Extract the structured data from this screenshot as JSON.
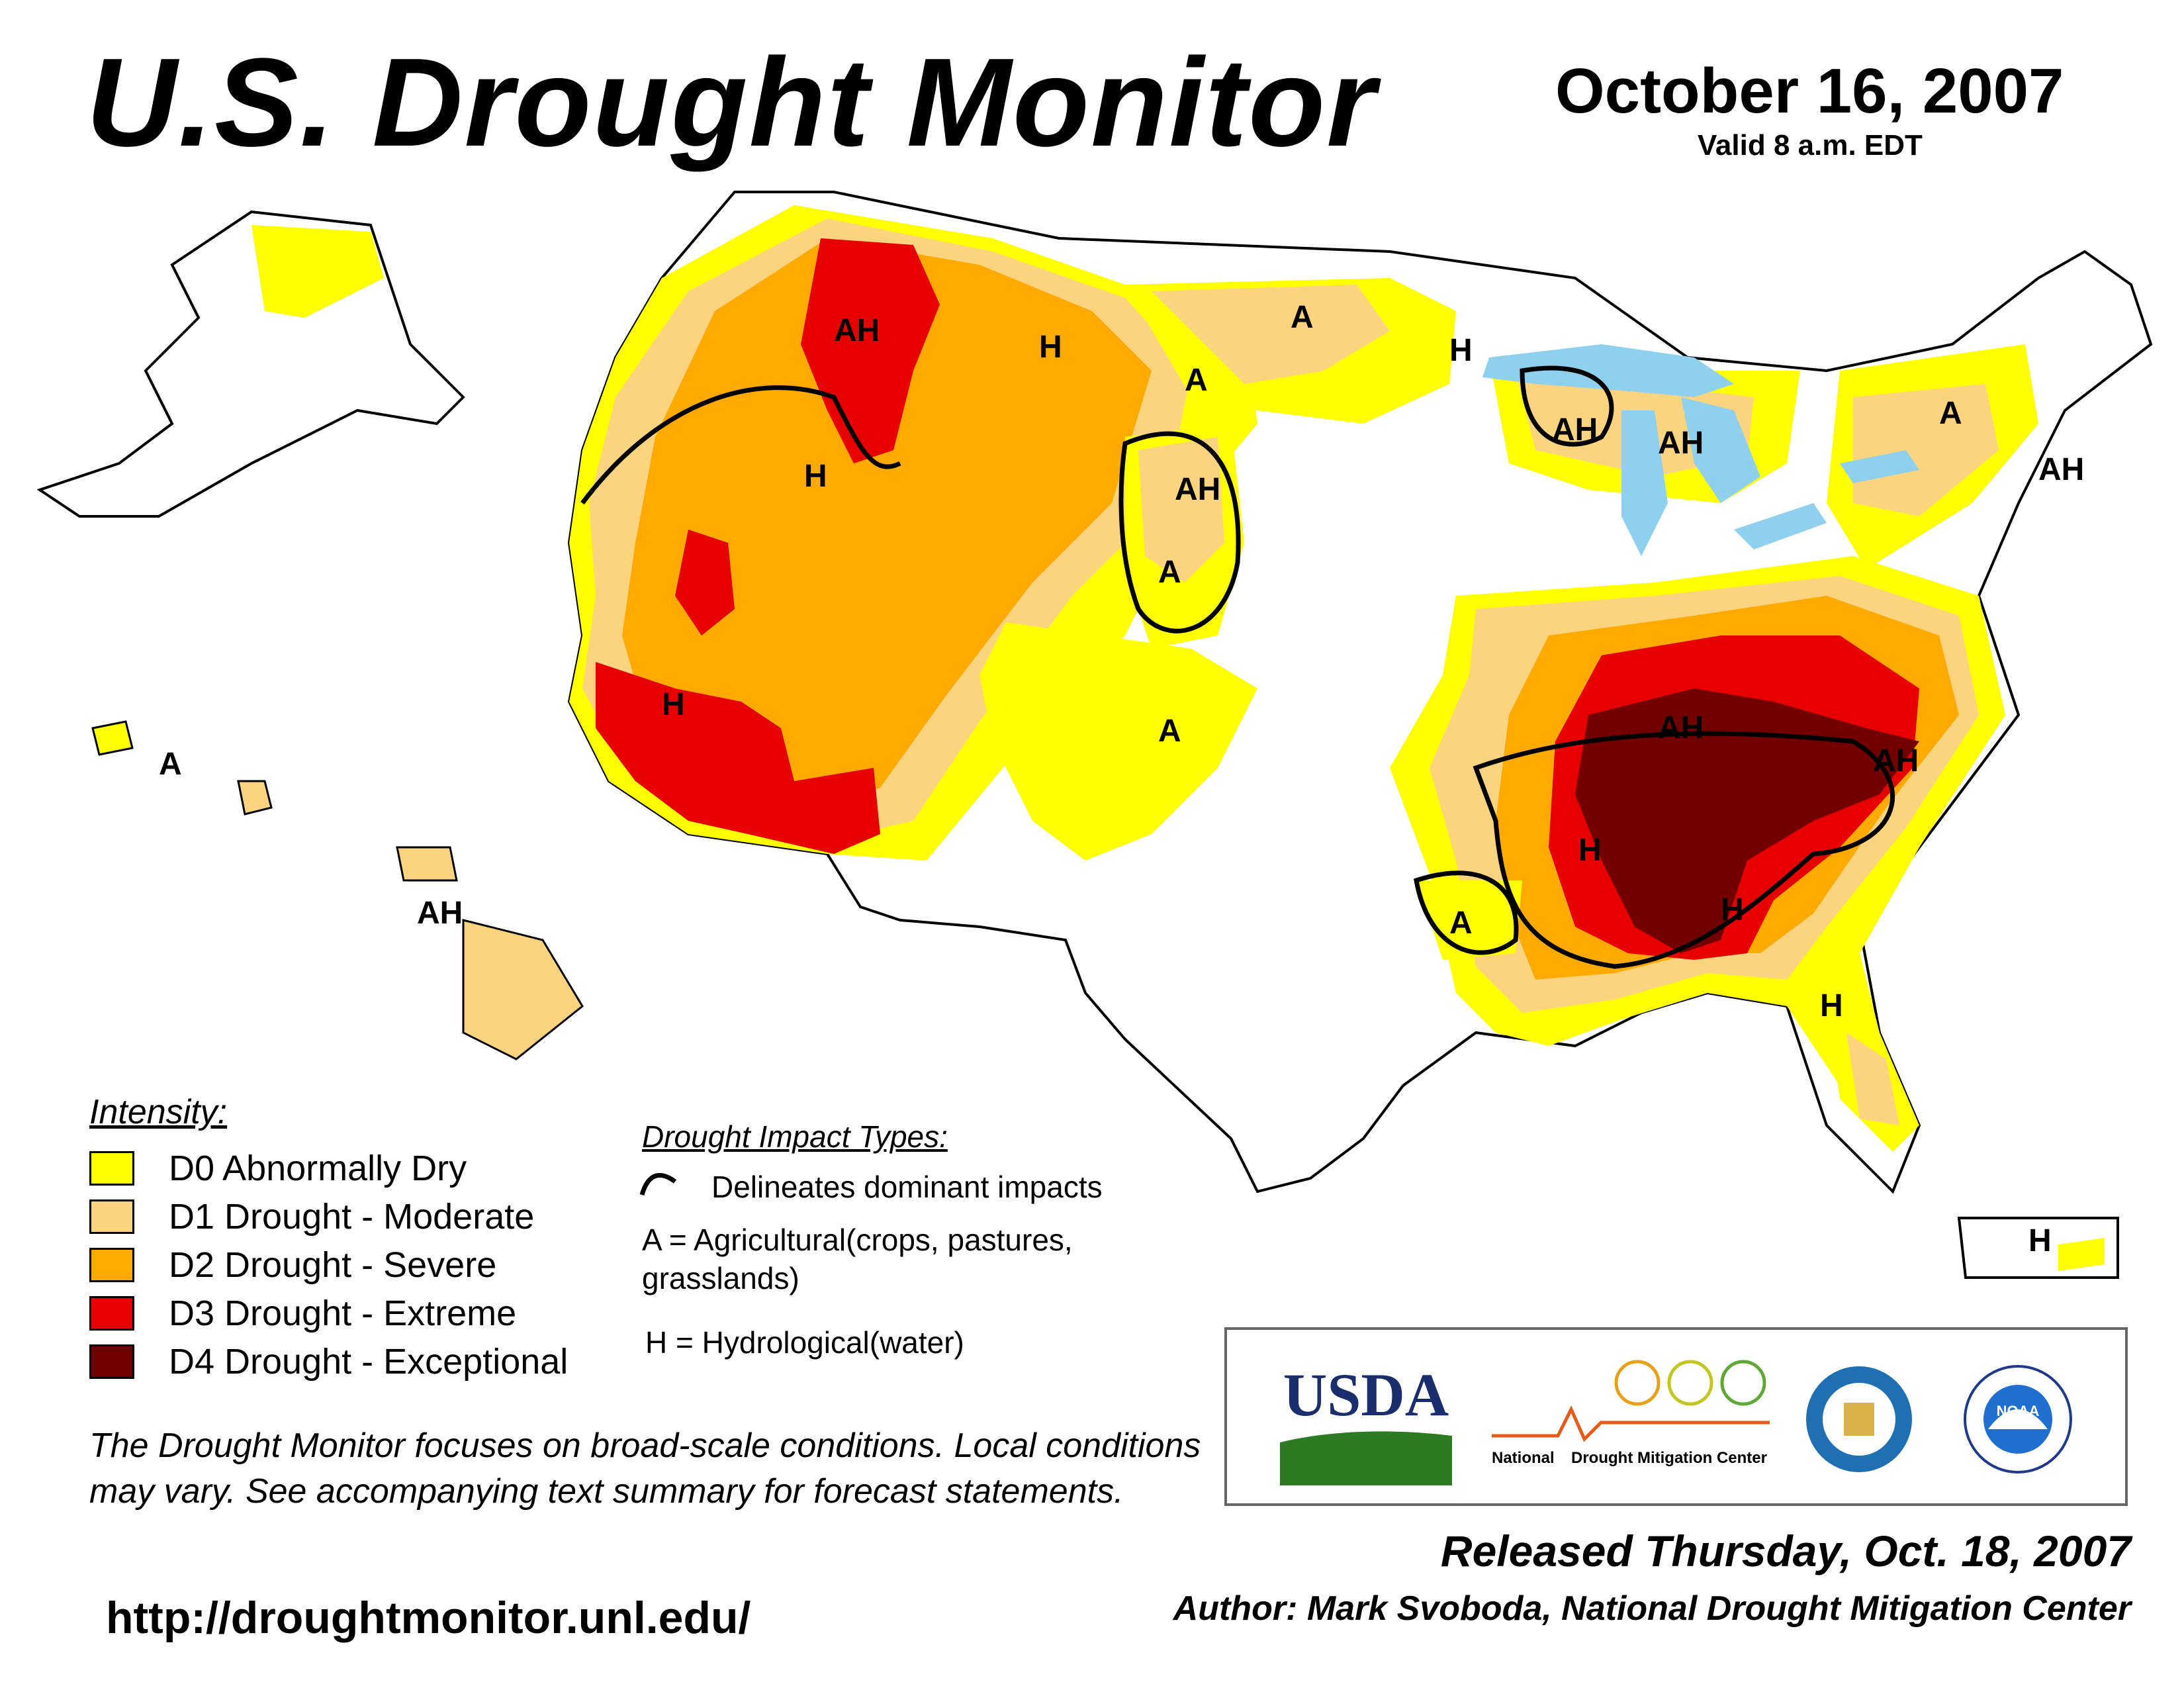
{
  "header": {
    "title": "U.S. Drought Monitor",
    "date": "October 16, 2007",
    "valid": "Valid 8 a.m. EDT"
  },
  "legend": {
    "heading": "Intensity:",
    "items": [
      {
        "label": "D0 Abnormally Dry",
        "color": "#ffff00"
      },
      {
        "label": "D1 Drought - Moderate",
        "color": "#fcd37f"
      },
      {
        "label": "D2 Drought - Severe",
        "color": "#ffaa00"
      },
      {
        "label": "D3 Drought - Extreme",
        "color": "#e60000"
      },
      {
        "label": "D4 Drought - Exceptional",
        "color": "#730000"
      }
    ]
  },
  "impacts": {
    "heading": "Drought Impact Types:",
    "delineates": "Delineates dominant impacts",
    "agricultural": "A = Agricultural(crops, pastures, grasslands)",
    "hydrological": "H = Hydrological(water)"
  },
  "map": {
    "water_color": "#8fd0ef",
    "labels": [
      "AH",
      "H",
      "A",
      "H",
      "AH",
      "H",
      "A",
      "H",
      "A",
      "AH",
      "AH",
      "A",
      "AH",
      "A",
      "AH",
      "A",
      "H",
      "AH",
      "H",
      "AH",
      "A",
      "H",
      "H"
    ]
  },
  "note": "The Drought Monitor focuses on broad-scale conditions. Local conditions may vary. See accompanying text summary for forecast statements.",
  "url": "http://droughtmonitor.unl.edu/",
  "logos": {
    "usda": "USDA",
    "ndmc_left": "National",
    "ndmc_right": "Drought Mitigation Center",
    "noaa": "NOAA"
  },
  "footer": {
    "released": "Released Thursday, Oct. 18, 2007",
    "author": "Author: Mark Svoboda, National Drought Mitigation Center"
  }
}
